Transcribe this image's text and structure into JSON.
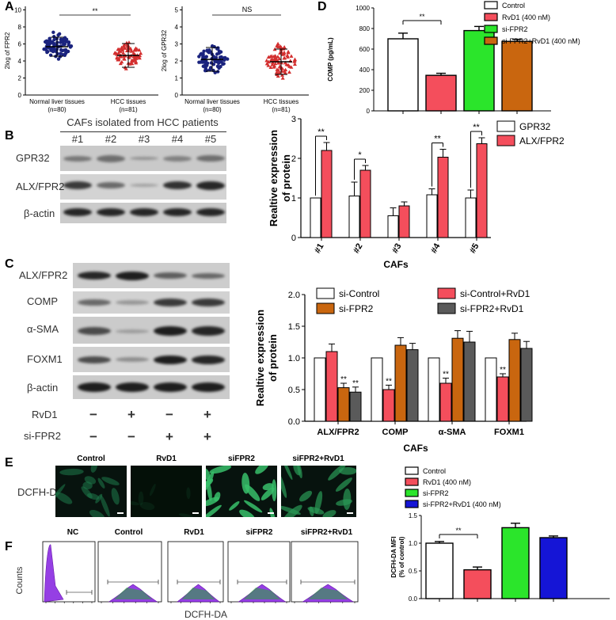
{
  "panels": {
    "A": "A",
    "B": "B",
    "C": "C",
    "D": "D",
    "E": "E",
    "F": "F"
  },
  "panel_a": {
    "left": {
      "ylabel": "2log of FPR2",
      "yticks": [
        "0",
        "2",
        "4",
        "6",
        "8",
        "10"
      ],
      "sig": "**",
      "groups": [
        {
          "label": "Normal liver tissues",
          "n": "(n=80)",
          "color": "#1a237e",
          "marker": "circle"
        },
        {
          "label": "HCC tissues",
          "n": "(n=81)",
          "color": "#d32f2f",
          "marker": "triangle"
        }
      ]
    },
    "right": {
      "ylabel": "2log of GPR32",
      "yticks": [
        "0",
        "1",
        "2",
        "3",
        "4",
        "5"
      ],
      "sig": "NS",
      "groups": [
        {
          "label": "Normal liver tissues",
          "n": "(n=80)",
          "color": "#1a237e",
          "marker": "circle"
        },
        {
          "label": "HCC tissues",
          "n": "(n=81)",
          "color": "#d32f2f",
          "marker": "triangle"
        }
      ]
    }
  },
  "panel_b_blot": {
    "header": "CAFs isolated from HCC patients",
    "lanes": [
      "#1",
      "#2",
      "#3",
      "#4",
      "#5"
    ],
    "rows": [
      "GPR32",
      "ALX/FPR2",
      "β-actin"
    ]
  },
  "panel_c_blot": {
    "rows": [
      "ALX/FPR2",
      "COMP",
      "α-SMA",
      "FOXM1",
      "β-actin"
    ],
    "treatments": [
      {
        "name": "RvD1",
        "signs": [
          "−",
          "+",
          "−",
          "+"
        ]
      },
      {
        "name": "si-FPR2",
        "signs": [
          "−",
          "−",
          "+",
          "+"
        ]
      }
    ]
  },
  "panel_e": {
    "row_label": "DCFH-DA",
    "images": [
      "Control",
      "RvD1",
      "siFPR2",
      "siFPR2+RvD1"
    ]
  },
  "panel_f": {
    "ylabel": "Counts",
    "xlabel": "DCFH-DA",
    "plots": [
      "NC",
      "Control",
      "RvD1",
      "siFPR2",
      "siFPR2+RvD1"
    ]
  },
  "chart_data": [
    {
      "id": "D",
      "type": "bar",
      "ylabel": "COMP (pg/mL)",
      "ylim": [
        0,
        1000
      ],
      "yticks": [
        "0",
        "200",
        "400",
        "600",
        "800",
        "1000"
      ],
      "series": [
        {
          "name": "Control",
          "value": 700,
          "err": 55,
          "color": "#ffffff"
        },
        {
          "name": "RvD1 (400 nM)",
          "value": 345,
          "err": 20,
          "color": "#f44e5c"
        },
        {
          "name": "si-FPR2",
          "value": 780,
          "err": 40,
          "color": "#2be52b"
        },
        {
          "name": "si-FPR2+RvD1 (400 nM)",
          "value": 675,
          "err": 20,
          "color": "#c9660f"
        }
      ],
      "annotations": [
        "**"
      ]
    },
    {
      "id": "B",
      "type": "bar",
      "xlabel": "CAFs",
      "ylabel": "Realtive  expression of protein",
      "categories": [
        "#1",
        "#2",
        "#3",
        "#4",
        "#5"
      ],
      "ylim": [
        0,
        3
      ],
      "yticks": [
        "0",
        "1",
        "2",
        "3"
      ],
      "series": [
        {
          "name": "GPR32",
          "color": "#ffffff",
          "values": [
            1.0,
            1.05,
            0.55,
            1.08,
            1.0
          ],
          "err": [
            0,
            0.35,
            0.2,
            0.15,
            0.2
          ]
        },
        {
          "name": "ALX/FPR2",
          "color": "#f44e5c",
          "values": [
            2.2,
            1.7,
            0.8,
            2.03,
            2.37
          ],
          "err": [
            0.2,
            0.12,
            0.1,
            0.2,
            0.15
          ]
        }
      ],
      "significance": [
        "**",
        "*",
        "",
        "**",
        "**"
      ]
    },
    {
      "id": "C",
      "type": "bar",
      "xlabel": "CAFs",
      "ylabel": "Realtive  expression of protein",
      "categories": [
        "ALX/FPR2",
        "COMP",
        "α-SMA",
        "FOXM1"
      ],
      "ylim": [
        0,
        2.0
      ],
      "yticks": [
        "0.0",
        "0.5",
        "1.0",
        "1.5",
        "2.0"
      ],
      "series": [
        {
          "name": "si-Control",
          "color": "#ffffff",
          "values": [
            1.0,
            1.0,
            1.0,
            1.0
          ],
          "err": [
            0,
            0,
            0,
            0
          ]
        },
        {
          "name": "si-Control+RvD1",
          "color": "#f44e5c",
          "values": [
            1.1,
            0.5,
            0.6,
            0.7
          ],
          "err": [
            0.12,
            0.07,
            0.08,
            0.05
          ]
        },
        {
          "name": "si-FPR2",
          "color": "#c9660f",
          "values": [
            0.53,
            1.2,
            1.31,
            1.29
          ],
          "err": [
            0.07,
            0.12,
            0.12,
            0.1
          ]
        },
        {
          "name": "si-FPR2+RvD1",
          "color": "#5a5a5a",
          "values": [
            0.46,
            1.13,
            1.25,
            1.15
          ],
          "err": [
            0.08,
            0.1,
            0.17,
            0.11
          ]
        }
      ],
      "significance": [
        [
          "",
          "**",
          "**"
        ],
        [
          "**",
          "",
          ""
        ],
        [
          "**",
          "",
          ""
        ],
        [
          "**",
          "",
          ""
        ]
      ]
    },
    {
      "id": "E",
      "type": "bar",
      "ylabel": "DCFH-DA MFI (% of control)",
      "ylim": [
        0,
        1.5
      ],
      "yticks": [
        "0.0",
        "0.5",
        "1.0",
        "1.5"
      ],
      "series": [
        {
          "name": "Control",
          "value": 1.0,
          "err": 0.03,
          "color": "#ffffff"
        },
        {
          "name": "RvD1 (400 nM)",
          "value": 0.52,
          "err": 0.05,
          "color": "#f44e5c"
        },
        {
          "name": "si-FPR2",
          "value": 1.28,
          "err": 0.08,
          "color": "#2be52b"
        },
        {
          "name": "si-FPR2+RvD1 (400 nM)",
          "value": 1.1,
          "err": 0.03,
          "color": "#1515d6"
        }
      ],
      "annotations": [
        "**"
      ]
    }
  ]
}
